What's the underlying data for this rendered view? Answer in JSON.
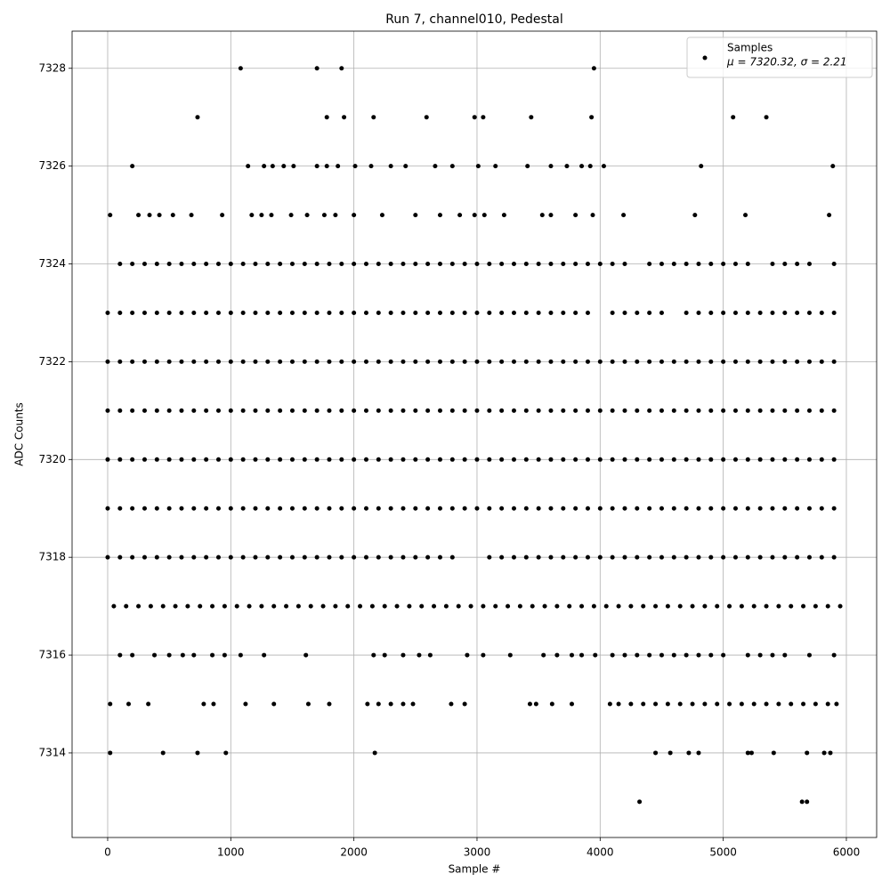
{
  "chart_data": {
    "type": "scatter",
    "title": "Run 7, channel010, Pedestal",
    "xlabel": "Sample #",
    "ylabel": "ADC Counts",
    "legend_note": "μ = 7320.32, σ = 2.21",
    "legend": "upper right",
    "grid": true,
    "xlim": [
      -289,
      6246
    ],
    "ylim": [
      7312.27,
      7328.76
    ],
    "xticks": [
      0,
      1000,
      2000,
      3000,
      4000,
      5000,
      6000
    ],
    "yticks": [
      7314,
      7316,
      7318,
      7320,
      7322,
      7324,
      7326,
      7328
    ],
    "x": [
      1080,
      1700,
      1900,
      3950,
      730,
      1780,
      1920,
      2160,
      2590,
      2980,
      3050,
      3440,
      3930,
      5080,
      5350,
      200,
      1140,
      1270,
      1340,
      1430,
      1510,
      1700,
      1780,
      1870,
      2010,
      2140,
      2300,
      2420,
      2660,
      2800,
      3010,
      3150,
      3410,
      3600,
      3730,
      3850,
      3920,
      4030,
      4820,
      5890,
      20,
      250,
      340,
      420,
      530,
      680,
      930,
      1170,
      1250,
      1330,
      1490,
      1620,
      1760,
      1850,
      2000,
      2230,
      2500,
      2700,
      2860,
      2980,
      3060,
      3220,
      3530,
      3600,
      3800,
      3940,
      4190,
      4770,
      5180,
      5860,
      100,
      200,
      300,
      400,
      500,
      600,
      700,
      800,
      900,
      1000,
      1100,
      1200,
      1300,
      1400,
      1500,
      1600,
      1700,
      1800,
      1900,
      2000,
      2100,
      2200,
      2300,
      2400,
      2500,
      2600,
      2700,
      2800,
      2900,
      3000,
      3100,
      3200,
      3300,
      3400,
      3500,
      3600,
      3700,
      3800,
      3900,
      4000,
      4100,
      4200,
      4400,
      4500,
      4600,
      4700,
      4800,
      4900,
      5000,
      5100,
      5200,
      5400,
      5500,
      5600,
      5700,
      5900,
      0,
      100,
      200,
      300,
      400,
      500,
      600,
      700,
      800,
      900,
      1000,
      1100,
      1200,
      1300,
      1400,
      1500,
      1600,
      1700,
      1800,
      1900,
      2000,
      2100,
      2200,
      2300,
      2400,
      2500,
      2600,
      2700,
      2800,
      2900,
      3000,
      3100,
      3200,
      3300,
      3400,
      3500,
      3600,
      3700,
      3800,
      3900,
      4100,
      4200,
      4300,
      4400,
      4500,
      4700,
      4800,
      4900,
      5000,
      5100,
      5200,
      5300,
      5400,
      5500,
      5600,
      5700,
      5800,
      5900,
      0,
      100,
      200,
      300,
      400,
      500,
      600,
      700,
      800,
      900,
      1000,
      1100,
      1200,
      1300,
      1400,
      1500,
      1600,
      1700,
      1800,
      1900,
      2000,
      2100,
      2200,
      2300,
      2400,
      2500,
      2600,
      2700,
      2800,
      2900,
      3000,
      3100,
      3200,
      3300,
      3400,
      3500,
      3600,
      3700,
      3800,
      3900,
      4000,
      4100,
      4200,
      4300,
      4400,
      4500,
      4600,
      4700,
      4800,
      4900,
      5000,
      5100,
      5200,
      5300,
      5400,
      5500,
      5600,
      5700,
      5800,
      5900,
      0,
      100,
      200,
      300,
      400,
      500,
      600,
      700,
      800,
      900,
      1000,
      1100,
      1200,
      1300,
      1400,
      1500,
      1600,
      1700,
      1800,
      1900,
      2000,
      2100,
      2200,
      2300,
      2400,
      2500,
      2600,
      2700,
      2800,
      2900,
      3000,
      3100,
      3200,
      3300,
      3400,
      3500,
      3600,
      3700,
      3800,
      3900,
      4000,
      4100,
      4200,
      4300,
      4400,
      4500,
      4600,
      4700,
      4800,
      4900,
      5000,
      5100,
      5200,
      5300,
      5400,
      5500,
      5600,
      5700,
      5800,
      5900,
      0,
      100,
      200,
      300,
      400,
      500,
      600,
      700,
      800,
      900,
      1000,
      1100,
      1200,
      1300,
      1400,
      1500,
      1600,
      1700,
      1800,
      1900,
      2000,
      2100,
      2200,
      2300,
      2400,
      2500,
      2600,
      2700,
      2800,
      2900,
      3000,
      3100,
      3200,
      3300,
      3400,
      3500,
      3600,
      3700,
      3800,
      3900,
      4000,
      4100,
      4200,
      4300,
      4400,
      4500,
      4600,
      4700,
      4800,
      4900,
      5000,
      5100,
      5200,
      5300,
      5400,
      5500,
      5600,
      5700,
      5800,
      5900,
      0,
      100,
      200,
      300,
      400,
      500,
      600,
      700,
      800,
      900,
      1000,
      1100,
      1200,
      1300,
      1400,
      1500,
      1600,
      1700,
      1800,
      1900,
      2000,
      2100,
      2200,
      2300,
      2400,
      2500,
      2600,
      2700,
      2800,
      2900,
      3000,
      3100,
      3200,
      3300,
      3400,
      3500,
      3600,
      3700,
      3800,
      3900,
      4000,
      4100,
      4200,
      4300,
      4400,
      4500,
      4600,
      4700,
      4800,
      4900,
      5000,
      5100,
      5200,
      5300,
      5400,
      5500,
      5600,
      5700,
      5800,
      5900,
      0,
      100,
      200,
      300,
      400,
      500,
      600,
      700,
      800,
      900,
      1000,
      1100,
      1200,
      1300,
      1400,
      1500,
      1600,
      1700,
      1800,
      1900,
      2000,
      2100,
      2200,
      2300,
      2400,
      2500,
      2600,
      2700,
      2800,
      3100,
      3200,
      3300,
      3400,
      3500,
      3600,
      3700,
      3800,
      3900,
      4000,
      4100,
      4200,
      4300,
      4400,
      4500,
      4600,
      4700,
      4800,
      4900,
      5000,
      5100,
      5200,
      5300,
      5400,
      5500,
      5600,
      5700,
      5800,
      5900,
      50,
      150,
      250,
      350,
      450,
      550,
      650,
      750,
      850,
      950,
      1050,
      1150,
      1250,
      1350,
      1450,
      1550,
      1650,
      1750,
      1850,
      1950,
      2050,
      2150,
      2250,
      2350,
      2450,
      2550,
      2650,
      2750,
      2850,
      2950,
      3050,
      3150,
      3250,
      3350,
      3450,
      3550,
      3650,
      3750,
      3850,
      3950,
      4050,
      4150,
      4250,
      4350,
      4450,
      4550,
      4650,
      4750,
      4850,
      4950,
      5050,
      5150,
      5250,
      5350,
      5450,
      5550,
      5650,
      5750,
      5850,
      5950,
      100,
      200,
      380,
      500,
      610,
      700,
      850,
      950,
      1080,
      1270,
      1610,
      2160,
      2250,
      2400,
      2530,
      2620,
      2920,
      3050,
      3270,
      3540,
      3650,
      3770,
      3850,
      3960,
      4100,
      4200,
      4300,
      4400,
      4500,
      4600,
      4700,
      4800,
      4900,
      5000,
      5200,
      5300,
      5400,
      5500,
      5700,
      5900,
      20,
      170,
      330,
      780,
      860,
      1120,
      1350,
      1630,
      1800,
      2110,
      2200,
      2300,
      2400,
      2480,
      2790,
      2900,
      3430,
      3480,
      3610,
      3770,
      4080,
      4150,
      4250,
      4350,
      4450,
      4550,
      4650,
      4750,
      4850,
      4950,
      5050,
      5150,
      5250,
      5350,
      5450,
      5550,
      5650,
      5750,
      5850,
      5920,
      20,
      450,
      730,
      960,
      2170,
      4450,
      4570,
      4720,
      4800,
      5200,
      5230,
      5410,
      5680,
      5820,
      5870,
      4320,
      5640,
      5680
    ],
    "series": [
      {
        "name": "Samples",
        "color": "#000000",
        "values": [
          7328,
          7328,
          7328,
          7328,
          7327,
          7327,
          7327,
          7327,
          7327,
          7327,
          7327,
          7327,
          7327,
          7327,
          7327,
          7326,
          7326,
          7326,
          7326,
          7326,
          7326,
          7326,
          7326,
          7326,
          7326,
          7326,
          7326,
          7326,
          7326,
          7326,
          7326,
          7326,
          7326,
          7326,
          7326,
          7326,
          7326,
          7326,
          7326,
          7326,
          7325,
          7325,
          7325,
          7325,
          7325,
          7325,
          7325,
          7325,
          7325,
          7325,
          7325,
          7325,
          7325,
          7325,
          7325,
          7325,
          7325,
          7325,
          7325,
          7325,
          7325,
          7325,
          7325,
          7325,
          7325,
          7325,
          7325,
          7325,
          7325,
          7325,
          7324,
          7324,
          7324,
          7324,
          7324,
          7324,
          7324,
          7324,
          7324,
          7324,
          7324,
          7324,
          7324,
          7324,
          7324,
          7324,
          7324,
          7324,
          7324,
          7324,
          7324,
          7324,
          7324,
          7324,
          7324,
          7324,
          7324,
          7324,
          7324,
          7324,
          7324,
          7324,
          7324,
          7324,
          7324,
          7324,
          7324,
          7324,
          7324,
          7324,
          7324,
          7324,
          7324,
          7324,
          7324,
          7324,
          7324,
          7324,
          7324,
          7324,
          7324,
          7324,
          7324,
          7324,
          7324,
          7324,
          7323,
          7323,
          7323,
          7323,
          7323,
          7323,
          7323,
          7323,
          7323,
          7323,
          7323,
          7323,
          7323,
          7323,
          7323,
          7323,
          7323,
          7323,
          7323,
          7323,
          7323,
          7323,
          7323,
          7323,
          7323,
          7323,
          7323,
          7323,
          7323,
          7323,
          7323,
          7323,
          7323,
          7323,
          7323,
          7323,
          7323,
          7323,
          7323,
          7323,
          7323,
          7323,
          7323,
          7323,
          7323,
          7323,
          7323,
          7323,
          7323,
          7323,
          7323,
          7323,
          7323,
          7323,
          7323,
          7323,
          7323,
          7323,
          7322,
          7322,
          7322,
          7322,
          7322,
          7322,
          7322,
          7322,
          7322,
          7322,
          7322,
          7322,
          7322,
          7322,
          7322,
          7322,
          7322,
          7322,
          7322,
          7322,
          7322,
          7322,
          7322,
          7322,
          7322,
          7322,
          7322,
          7322,
          7322,
          7322,
          7322,
          7322,
          7322,
          7322,
          7322,
          7322,
          7322,
          7322,
          7322,
          7322,
          7322,
          7322,
          7322,
          7322,
          7322,
          7322,
          7322,
          7322,
          7322,
          7322,
          7322,
          7322,
          7322,
          7322,
          7322,
          7322,
          7322,
          7322,
          7322,
          7322,
          7321,
          7321,
          7321,
          7321,
          7321,
          7321,
          7321,
          7321,
          7321,
          7321,
          7321,
          7321,
          7321,
          7321,
          7321,
          7321,
          7321,
          7321,
          7321,
          7321,
          7321,
          7321,
          7321,
          7321,
          7321,
          7321,
          7321,
          7321,
          7321,
          7321,
          7321,
          7321,
          7321,
          7321,
          7321,
          7321,
          7321,
          7321,
          7321,
          7321,
          7321,
          7321,
          7321,
          7321,
          7321,
          7321,
          7321,
          7321,
          7321,
          7321,
          7321,
          7321,
          7321,
          7321,
          7321,
          7321,
          7321,
          7321,
          7321,
          7321,
          7320,
          7320,
          7320,
          7320,
          7320,
          7320,
          7320,
          7320,
          7320,
          7320,
          7320,
          7320,
          7320,
          7320,
          7320,
          7320,
          7320,
          7320,
          7320,
          7320,
          7320,
          7320,
          7320,
          7320,
          7320,
          7320,
          7320,
          7320,
          7320,
          7320,
          7320,
          7320,
          7320,
          7320,
          7320,
          7320,
          7320,
          7320,
          7320,
          7320,
          7320,
          7320,
          7320,
          7320,
          7320,
          7320,
          7320,
          7320,
          7320,
          7320,
          7320,
          7320,
          7320,
          7320,
          7320,
          7320,
          7320,
          7320,
          7320,
          7320,
          7319,
          7319,
          7319,
          7319,
          7319,
          7319,
          7319,
          7319,
          7319,
          7319,
          7319,
          7319,
          7319,
          7319,
          7319,
          7319,
          7319,
          7319,
          7319,
          7319,
          7319,
          7319,
          7319,
          7319,
          7319,
          7319,
          7319,
          7319,
          7319,
          7319,
          7319,
          7319,
          7319,
          7319,
          7319,
          7319,
          7319,
          7319,
          7319,
          7319,
          7319,
          7319,
          7319,
          7319,
          7319,
          7319,
          7319,
          7319,
          7319,
          7319,
          7319,
          7319,
          7319,
          7319,
          7319,
          7319,
          7319,
          7319,
          7319,
          7319,
          7318,
          7318,
          7318,
          7318,
          7318,
          7318,
          7318,
          7318,
          7318,
          7318,
          7318,
          7318,
          7318,
          7318,
          7318,
          7318,
          7318,
          7318,
          7318,
          7318,
          7318,
          7318,
          7318,
          7318,
          7318,
          7318,
          7318,
          7318,
          7318,
          7318,
          7318,
          7318,
          7318,
          7318,
          7318,
          7318,
          7318,
          7318,
          7318,
          7318,
          7318,
          7318,
          7318,
          7318,
          7318,
          7318,
          7318,
          7318,
          7318,
          7318,
          7318,
          7318,
          7318,
          7318,
          7318,
          7318,
          7318,
          7318,
          7317,
          7317,
          7317,
          7317,
          7317,
          7317,
          7317,
          7317,
          7317,
          7317,
          7317,
          7317,
          7317,
          7317,
          7317,
          7317,
          7317,
          7317,
          7317,
          7317,
          7317,
          7317,
          7317,
          7317,
          7317,
          7317,
          7317,
          7317,
          7317,
          7317,
          7317,
          7317,
          7317,
          7317,
          7317,
          7317,
          7317,
          7317,
          7317,
          7317,
          7317,
          7317,
          7317,
          7317,
          7317,
          7317,
          7317,
          7317,
          7317,
          7317,
          7317,
          7317,
          7317,
          7317,
          7317,
          7317,
          7317,
          7317,
          7317,
          7317,
          7316,
          7316,
          7316,
          7316,
          7316,
          7316,
          7316,
          7316,
          7316,
          7316,
          7316,
          7316,
          7316,
          7316,
          7316,
          7316,
          7316,
          7316,
          7316,
          7316,
          7316,
          7316,
          7316,
          7316,
          7316,
          7316,
          7316,
          7316,
          7316,
          7316,
          7316,
          7316,
          7316,
          7316,
          7316,
          7316,
          7316,
          7316,
          7316,
          7316,
          7315,
          7315,
          7315,
          7315,
          7315,
          7315,
          7315,
          7315,
          7315,
          7315,
          7315,
          7315,
          7315,
          7315,
          7315,
          7315,
          7315,
          7315,
          7315,
          7315,
          7315,
          7315,
          7315,
          7315,
          7315,
          7315,
          7315,
          7315,
          7315,
          7315,
          7315,
          7315,
          7315,
          7315,
          7315,
          7315,
          7315,
          7315,
          7315,
          7315,
          7314,
          7314,
          7314,
          7314,
          7314,
          7314,
          7314,
          7314,
          7314,
          7314,
          7314,
          7314,
          7314,
          7314,
          7314,
          7313,
          7313,
          7313
        ]
      }
    ]
  }
}
